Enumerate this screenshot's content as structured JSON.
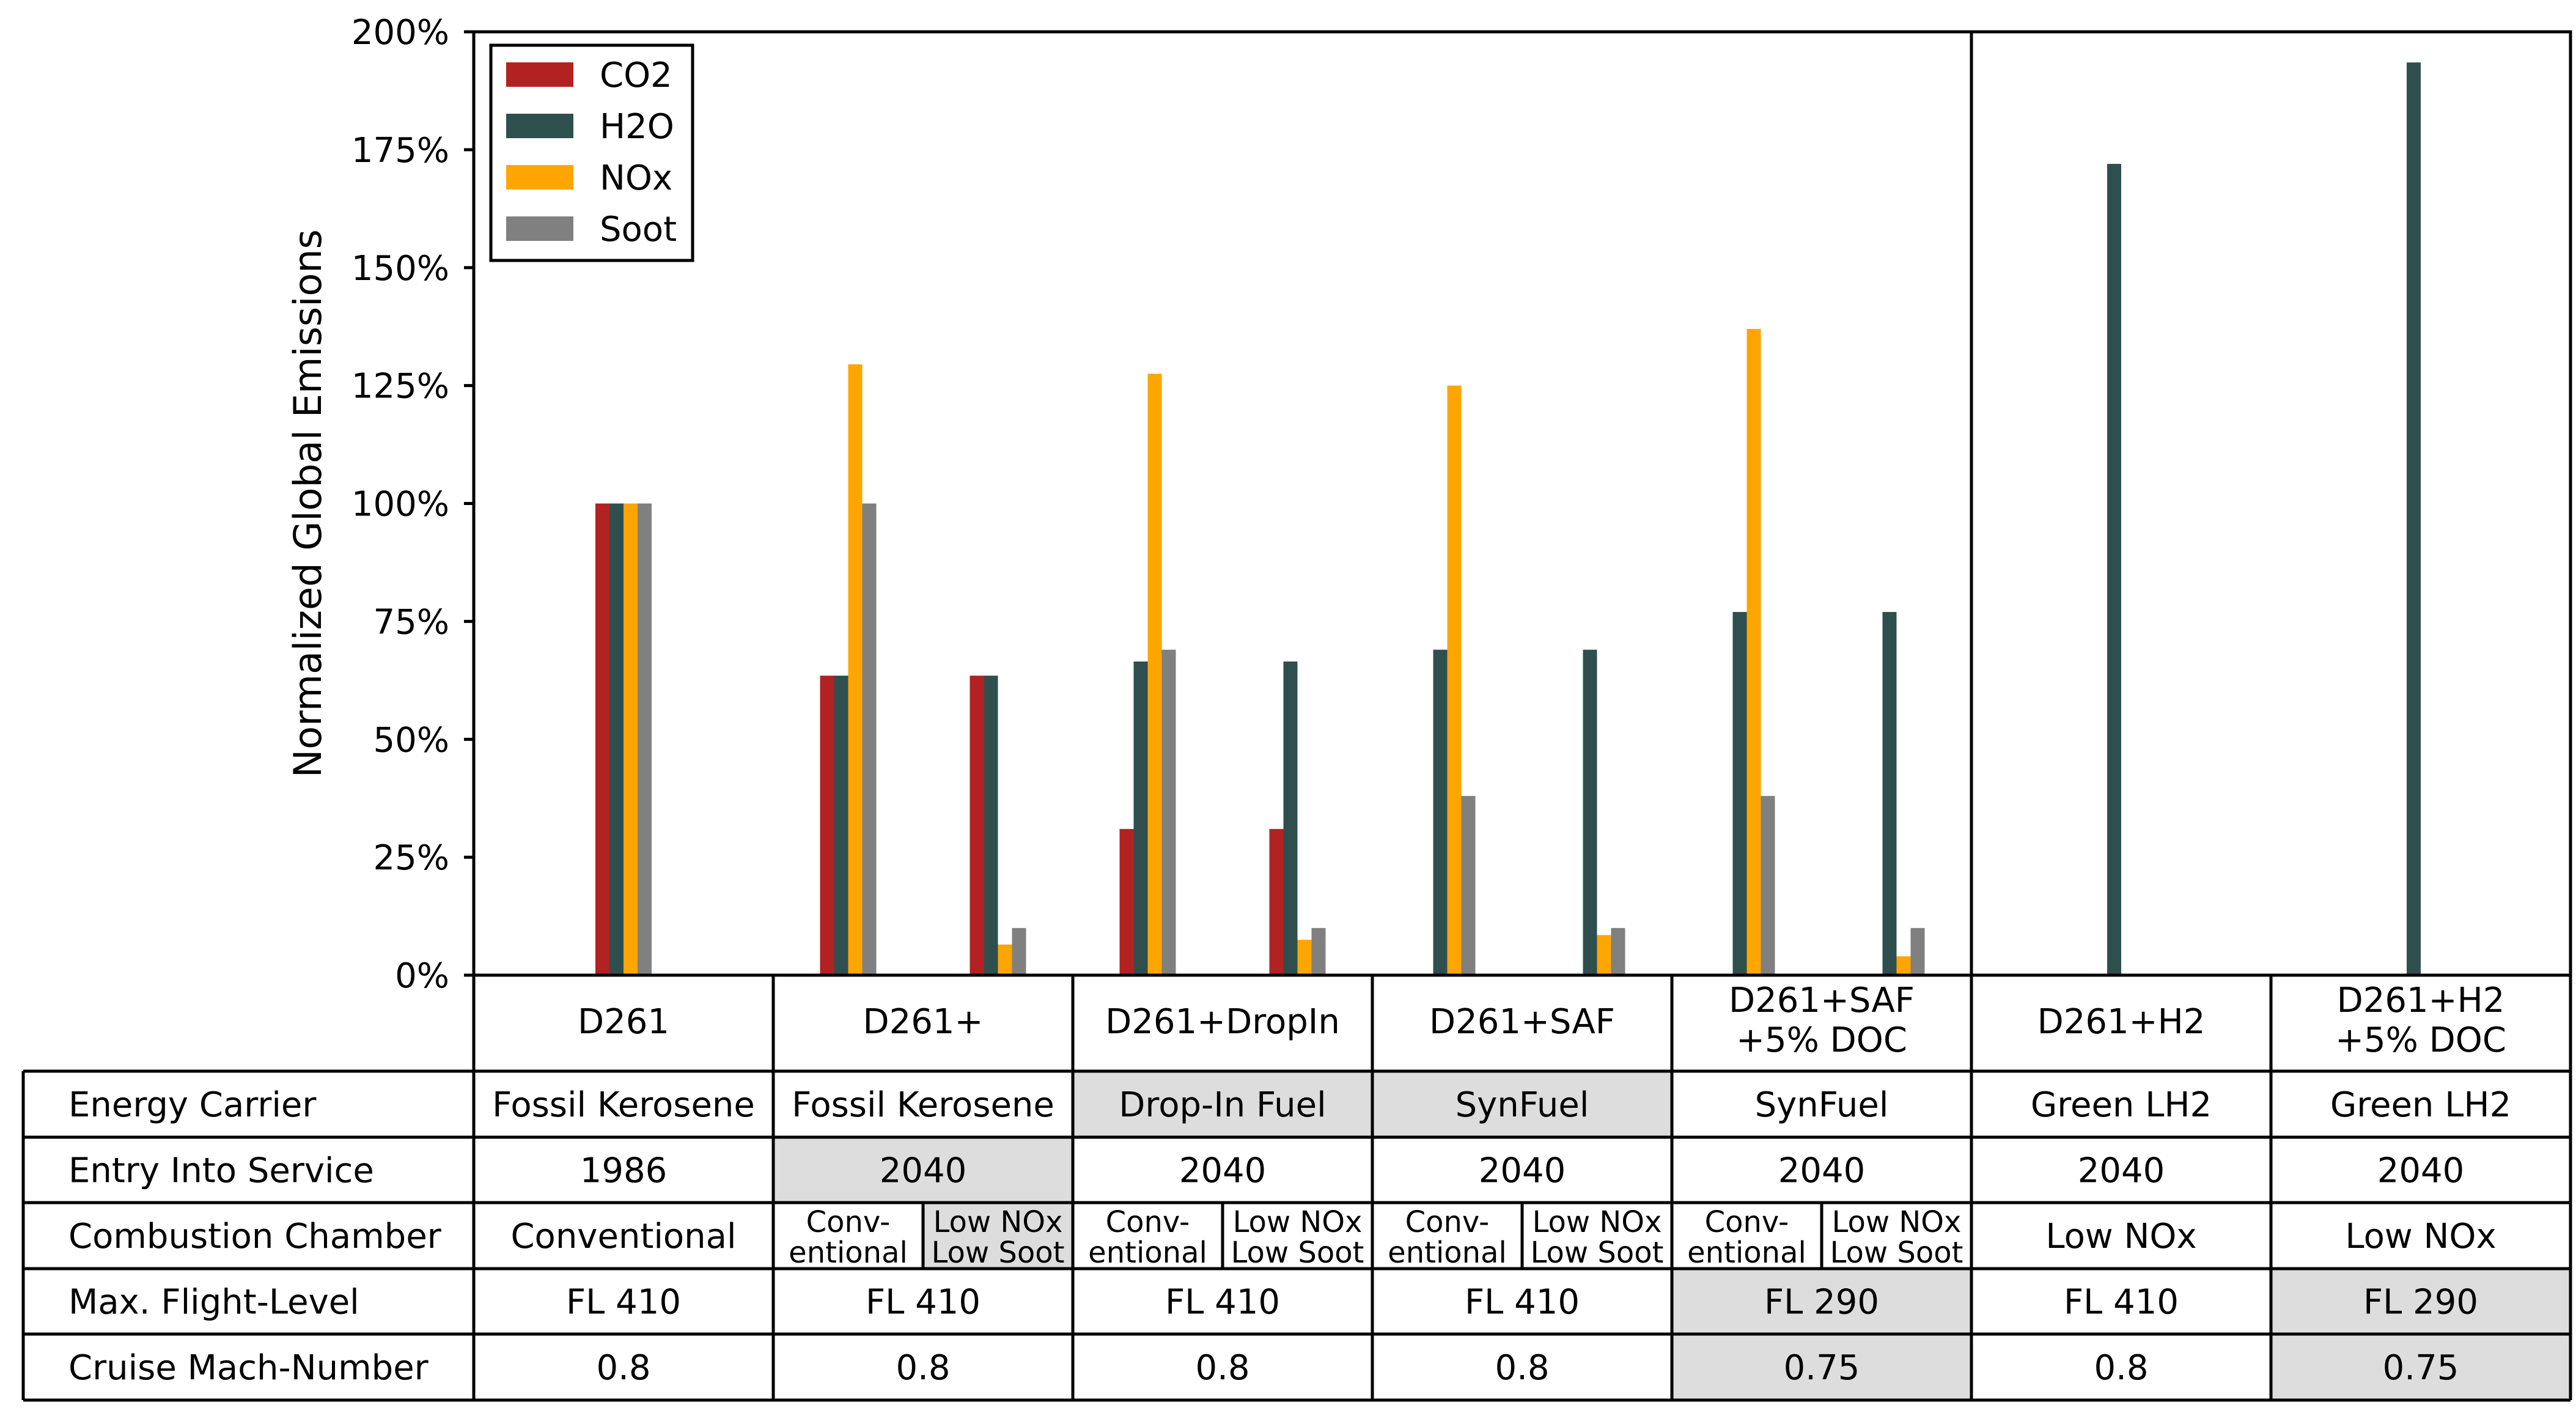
{
  "chart_data": {
    "type": "bar",
    "ylabel": "Normalized Global Emissions",
    "ylim": [
      0,
      200
    ],
    "yticks": [
      "0%",
      "25%",
      "50%",
      "75%",
      "100%",
      "125%",
      "150%",
      "175%",
      "200%"
    ],
    "ytick_values": [
      0,
      25,
      50,
      75,
      100,
      125,
      150,
      175,
      200
    ],
    "legend_position": "top-left",
    "series": [
      {
        "name": "CO2",
        "color": "#b22222"
      },
      {
        "name": "H2O",
        "color": "#2f4f4f"
      },
      {
        "name": "NOx",
        "color": "#ffa500"
      },
      {
        "name": "Soot",
        "color": "#808080"
      }
    ],
    "configurations": [
      {
        "title_lines": [
          "D261"
        ],
        "variants": [
          [
            100,
            100,
            100,
            100
          ]
        ]
      },
      {
        "title_lines": [
          "D261+"
        ],
        "variants": [
          [
            63.5,
            63.5,
            129.5,
            100
          ],
          [
            63.5,
            63.5,
            6.5,
            10
          ]
        ]
      },
      {
        "title_lines": [
          "D261+DropIn"
        ],
        "variants": [
          [
            31,
            66.5,
            127.5,
            69
          ],
          [
            31,
            66.5,
            7.5,
            10
          ]
        ]
      },
      {
        "title_lines": [
          "D261+SAF"
        ],
        "variants": [
          [
            0,
            69,
            125,
            38
          ],
          [
            0,
            69,
            8.5,
            10
          ]
        ]
      },
      {
        "title_lines": [
          "D261+SAF",
          "+5% DOC"
        ],
        "variants": [
          [
            0,
            77,
            137,
            38
          ],
          [
            0,
            77,
            4,
            10
          ]
        ]
      },
      {
        "title_lines": [
          "D261+H2"
        ],
        "variants": [
          [
            0,
            172,
            0,
            0
          ]
        ]
      },
      {
        "title_lines": [
          "D261+H2",
          "+5% DOC"
        ],
        "variants": [
          [
            0,
            193.5,
            0,
            0
          ]
        ]
      }
    ]
  },
  "table": {
    "highlight_color": "#dddddd",
    "rows": [
      {
        "label": "Energy Carrier",
        "cells": [
          {
            "text": "Fossil Kerosene",
            "hl": false
          },
          {
            "text": "Fossil Kerosene",
            "hl": false
          },
          {
            "text": "Drop-In Fuel",
            "hl": true
          },
          {
            "text": "SynFuel",
            "hl": true
          },
          {
            "text": "SynFuel",
            "hl": false
          },
          {
            "text": "Green LH2",
            "hl": false
          },
          {
            "text": "Green LH2",
            "hl": false
          }
        ]
      },
      {
        "label": "Entry Into Service",
        "cells": [
          {
            "text": "1986",
            "hl": false
          },
          {
            "text": "2040",
            "hl": true
          },
          {
            "text": "2040",
            "hl": false
          },
          {
            "text": "2040",
            "hl": false
          },
          {
            "text": "2040",
            "hl": false
          },
          {
            "text": "2040",
            "hl": false
          },
          {
            "text": "2040",
            "hl": false
          }
        ]
      },
      {
        "label": "Combustion Chamber",
        "cells": [
          {
            "text": "Conventional",
            "hl": false
          },
          {
            "split": [
              {
                "lines": [
                  "Conv-",
                  "entional"
                ],
                "hl": false
              },
              {
                "lines": [
                  "Low NOx",
                  "Low Soot"
                ],
                "hl": true
              }
            ]
          },
          {
            "split": [
              {
                "lines": [
                  "Conv-",
                  "entional"
                ],
                "hl": false
              },
              {
                "lines": [
                  "Low NOx",
                  "Low Soot"
                ],
                "hl": false
              }
            ]
          },
          {
            "split": [
              {
                "lines": [
                  "Conv-",
                  "entional"
                ],
                "hl": false
              },
              {
                "lines": [
                  "Low NOx",
                  "Low Soot"
                ],
                "hl": false
              }
            ]
          },
          {
            "split": [
              {
                "lines": [
                  "Conv-",
                  "entional"
                ],
                "hl": false
              },
              {
                "lines": [
                  "Low NOx",
                  "Low Soot"
                ],
                "hl": false
              }
            ]
          },
          {
            "text": "Low NOx",
            "hl": false
          },
          {
            "text": "Low NOx",
            "hl": false
          }
        ]
      },
      {
        "label": "Max. Flight-Level",
        "cells": [
          {
            "text": "FL 410",
            "hl": false
          },
          {
            "text": "FL 410",
            "hl": false
          },
          {
            "text": "FL 410",
            "hl": false
          },
          {
            "text": "FL 410",
            "hl": false
          },
          {
            "text": "FL 290",
            "hl": true
          },
          {
            "text": "FL 410",
            "hl": false
          },
          {
            "text": "FL 290",
            "hl": true
          }
        ]
      },
      {
        "label": "Cruise Mach-Number",
        "cells": [
          {
            "text": "0.8",
            "hl": false
          },
          {
            "text": "0.8",
            "hl": false
          },
          {
            "text": "0.8",
            "hl": false
          },
          {
            "text": "0.8",
            "hl": false
          },
          {
            "text": "0.75",
            "hl": true
          },
          {
            "text": "0.8",
            "hl": false
          },
          {
            "text": "0.75",
            "hl": true
          }
        ]
      }
    ]
  }
}
